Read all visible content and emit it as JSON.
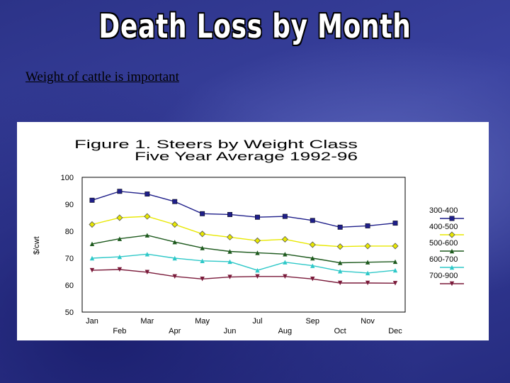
{
  "slide": {
    "title": "Death Loss by Month",
    "subtitle": "Weight of cattle is important"
  },
  "colors": {
    "300-400": "#1f1f8a",
    "400-500": "#e8e800",
    "500-600": "#1e5a1e",
    "600-700": "#2ec8c8",
    "700-900": "#7a1a3a"
  },
  "chart_data": {
    "type": "line",
    "title_line1": "Figure 1.  Steers by Weight Class",
    "title_line2": "Five Year Average 1992-96",
    "ylabel": "$/cwt",
    "xlabel": "",
    "ylim": [
      50,
      100
    ],
    "yticks": [
      100,
      90,
      80,
      70,
      60,
      50
    ],
    "grid": false,
    "legend_position": "right",
    "categories": [
      "Jan",
      "Feb",
      "Mar",
      "Apr",
      "May",
      "Jun",
      "Jul",
      "Aug",
      "Sep",
      "Oct",
      "Nov",
      "Dec"
    ],
    "series": [
      {
        "name": "300-400",
        "marker": "square",
        "values": [
          91.5,
          94.8,
          93.8,
          91.0,
          86.5,
          86.2,
          85.2,
          85.5,
          84.0,
          81.5,
          82.0,
          83.0
        ]
      },
      {
        "name": "400-500",
        "marker": "diamond",
        "values": [
          82.5,
          85.0,
          85.5,
          82.5,
          79.0,
          77.8,
          76.5,
          77.0,
          75.0,
          74.3,
          74.5,
          74.5
        ]
      },
      {
        "name": "500-600",
        "marker": "triangle",
        "values": [
          75.3,
          77.2,
          78.5,
          76.0,
          73.8,
          72.5,
          72.0,
          71.5,
          70.0,
          68.3,
          68.5,
          68.7
        ]
      },
      {
        "name": "600-700",
        "marker": "triangle",
        "values": [
          70.0,
          70.5,
          71.5,
          70.0,
          69.0,
          68.7,
          65.5,
          68.5,
          67.2,
          65.2,
          64.5,
          65.5
        ]
      },
      {
        "name": "700-900",
        "marker": "triangle-down",
        "values": [
          65.5,
          65.8,
          64.8,
          63.2,
          62.3,
          63.0,
          63.2,
          63.2,
          62.3,
          60.8,
          60.8,
          60.7
        ]
      }
    ]
  }
}
